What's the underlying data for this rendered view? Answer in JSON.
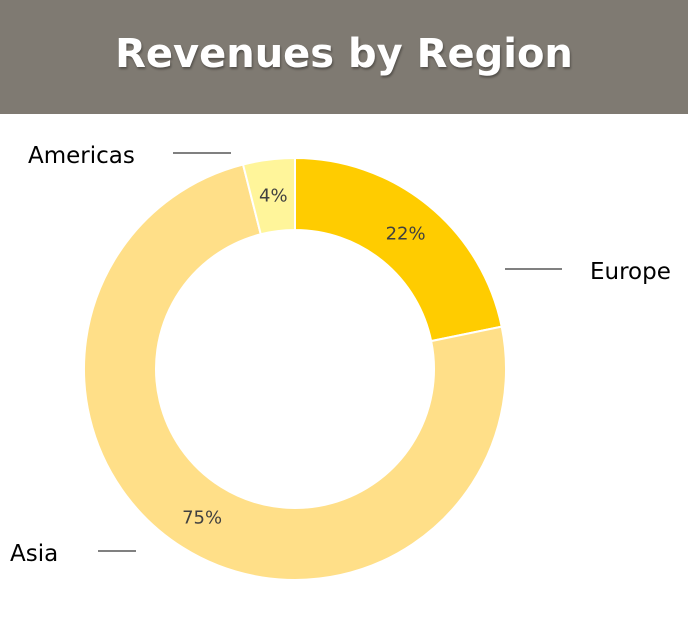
{
  "chart_data": {
    "type": "pie",
    "variant": "donut",
    "title": "Revenues by Region",
    "slices": [
      {
        "name": "Europe",
        "value": 22,
        "label": "22%",
        "color": "#ffcc00"
      },
      {
        "name": "Asia",
        "value": 75,
        "label": "75%",
        "color": "#ffdf88"
      },
      {
        "name": "Americas",
        "value": 4,
        "label": "4%",
        "color": "#fff59a"
      }
    ],
    "legend": "none",
    "label_style": "outside-with-leader-lines"
  },
  "colors": {
    "header_background": "#7f7a72",
    "title_text": "#ffffff",
    "slice_separator": "#ffffff"
  }
}
